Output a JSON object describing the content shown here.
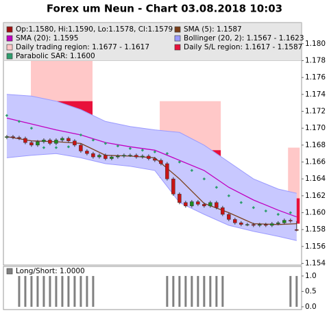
{
  "chart_data": [
    {
      "type": "candlestick",
      "title": "Forex um Neun - Chart 03.08.2018 10:03",
      "name": "Op:1.1580, Hi:1.1590, Lo:1.1578, Cl:1.1579",
      "color": "#a01010",
      "up_color": "#1e8c1e",
      "down_color": "#c81414",
      "x": [
        0,
        1,
        2,
        3,
        4,
        5,
        6,
        7,
        8,
        9,
        10,
        11,
        12,
        13,
        14,
        15,
        16,
        17,
        18,
        19,
        20,
        21,
        22,
        23,
        24,
        25,
        26,
        27,
        28,
        29,
        30,
        31,
        32,
        33,
        34,
        35,
        36,
        37,
        38,
        39,
        40,
        41,
        42,
        43,
        44,
        45,
        46,
        47
      ],
      "open": [
        1.1689,
        1.169,
        1.1689,
        1.1688,
        1.1683,
        1.168,
        1.1684,
        1.1686,
        1.1682,
        1.1686,
        1.1688,
        1.1685,
        1.168,
        1.1673,
        1.167,
        1.1666,
        1.1668,
        1.1664,
        1.1666,
        1.1667,
        1.1668,
        1.1668,
        1.1666,
        1.1667,
        1.1664,
        1.1662,
        1.1658,
        1.164,
        1.1622,
        1.1612,
        1.1608,
        1.1613,
        1.161,
        1.1608,
        1.1612,
        1.1606,
        1.1598,
        1.1592,
        1.1588,
        1.1586,
        1.1586,
        1.1585,
        1.1586,
        1.1585,
        1.1587,
        1.1588,
        1.1591,
        1.158
      ],
      "high": [
        1.1692,
        1.1692,
        1.1691,
        1.169,
        1.1685,
        1.1686,
        1.1688,
        1.1688,
        1.1688,
        1.169,
        1.169,
        1.1687,
        1.1682,
        1.1675,
        1.1672,
        1.167,
        1.167,
        1.1668,
        1.1669,
        1.167,
        1.167,
        1.167,
        1.1669,
        1.1669,
        1.1666,
        1.1664,
        1.166,
        1.1642,
        1.1624,
        1.1614,
        1.1615,
        1.1615,
        1.1612,
        1.1614,
        1.1614,
        1.1608,
        1.16,
        1.1594,
        1.159,
        1.1588,
        1.1588,
        1.1588,
        1.1588,
        1.1589,
        1.159,
        1.1593,
        1.1593,
        1.159
      ],
      "low": [
        1.1687,
        1.1687,
        1.1686,
        1.1681,
        1.1678,
        1.1678,
        1.1682,
        1.168,
        1.168,
        1.1684,
        1.1683,
        1.1678,
        1.1671,
        1.1668,
        1.1664,
        1.1664,
        1.1662,
        1.1662,
        1.1664,
        1.1665,
        1.1666,
        1.1664,
        1.1664,
        1.1662,
        1.166,
        1.1656,
        1.1638,
        1.162,
        1.161,
        1.1606,
        1.1606,
        1.1608,
        1.1606,
        1.1606,
        1.1604,
        1.1596,
        1.159,
        1.1586,
        1.1584,
        1.1584,
        1.1583,
        1.1583,
        1.1583,
        1.1583,
        1.1585,
        1.1586,
        1.1588,
        1.1578
      ],
      "close": [
        1.169,
        1.1689,
        1.1688,
        1.1683,
        1.168,
        1.1684,
        1.1686,
        1.1682,
        1.1686,
        1.1688,
        1.1685,
        1.168,
        1.1673,
        1.167,
        1.1666,
        1.1668,
        1.1664,
        1.1666,
        1.1667,
        1.1668,
        1.1668,
        1.1666,
        1.1667,
        1.1664,
        1.1662,
        1.1658,
        1.164,
        1.1622,
        1.1612,
        1.1608,
        1.1613,
        1.161,
        1.1608,
        1.1612,
        1.1606,
        1.1598,
        1.1592,
        1.1588,
        1.1586,
        1.1586,
        1.1585,
        1.1586,
        1.1585,
        1.1587,
        1.1588,
        1.1591,
        1.159,
        1.1579
      ],
      "bands": [
        {
          "name": "Bollinger (20, 2): 1.1567 - 1.1623",
          "color": "#9a9aff",
          "fill": "#c8c8ff",
          "x": [
            0,
            4,
            8,
            12,
            16,
            20,
            24,
            28,
            32,
            36,
            40,
            44,
            47
          ],
          "upper": [
            1.174,
            1.1738,
            1.1732,
            1.1722,
            1.1708,
            1.1702,
            1.1698,
            1.1695,
            1.168,
            1.166,
            1.164,
            1.1628,
            1.1623
          ],
          "lower": [
            1.1665,
            1.1668,
            1.167,
            1.1665,
            1.1658,
            1.1655,
            1.165,
            1.1612,
            1.1598,
            1.1585,
            1.1578,
            1.1572,
            1.1567
          ]
        }
      ],
      "series": [
        {
          "name": "SMA (5): 1.1587",
          "color": "#7b3f1a",
          "style": "line",
          "x": [
            0,
            4,
            8,
            12,
            16,
            20,
            24,
            28,
            32,
            36,
            40,
            44,
            47
          ],
          "values": [
            1.169,
            1.1685,
            1.1684,
            1.1682,
            1.1668,
            1.1667,
            1.1665,
            1.164,
            1.1611,
            1.16,
            1.1587,
            1.1586,
            1.1587
          ]
        },
        {
          "name": "SMA (20): 1.1595",
          "color": "#c000c0",
          "style": "line",
          "x": [
            0,
            4,
            8,
            12,
            16,
            20,
            24,
            28,
            32,
            36,
            40,
            44,
            47
          ],
          "values": [
            1.1712,
            1.1705,
            1.1698,
            1.1692,
            1.1683,
            1.1678,
            1.1674,
            1.1662,
            1.165,
            1.163,
            1.1615,
            1.1603,
            1.1595
          ]
        },
        {
          "name": "Parabolic SAR: 1.1600",
          "color": "#2e9e6e",
          "style": "dots",
          "x": [
            0,
            2,
            4,
            6,
            8,
            10,
            12,
            14,
            16,
            18,
            20,
            22,
            24,
            26,
            28,
            30,
            32,
            34,
            36,
            38,
            40,
            42,
            44,
            46
          ],
          "values": [
            1.1715,
            1.1708,
            1.17,
            1.1677,
            1.1677,
            1.1678,
            1.1692,
            1.1686,
            1.1682,
            1.1679,
            1.1676,
            1.1674,
            1.1672,
            1.167,
            1.166,
            1.165,
            1.164,
            1.163,
            1.162,
            1.1612,
            1.1606,
            1.1602,
            1.1598,
            1.16
          ]
        }
      ],
      "regions": [
        {
          "name": "Daily trading region: 1.1677 - 1.1617",
          "color": "#ffc8c8",
          "spans": [
            {
              "x": [
                3.9,
                13.9
              ],
              "y": [
                1.1792,
                1.1732
              ]
            },
            {
              "x": [
                24.8,
                34.7
              ],
              "y": [
                1.1732,
                1.1674
              ]
            },
            {
              "x": [
                45.6,
                47.5
              ],
              "y": [
                1.1677,
                1.1617
              ]
            }
          ]
        },
        {
          "name": "Daily S/L region: 1.1617 - 1.1587",
          "color": "#e8103a",
          "spans": [
            {
              "x": [
                3.9,
                13.9
              ],
              "y": [
                1.1732,
                1.17
              ]
            },
            {
              "x": [
                24.8,
                34.7
              ],
              "y": [
                1.1674,
                1.1641
              ]
            },
            {
              "x": [
                45.6,
                47.5
              ],
              "y": [
                1.1617,
                1.1587
              ]
            }
          ]
        }
      ],
      "xlim": [
        -0.55,
        47.8
      ],
      "ylim": [
        1.1538,
        1.1825
      ],
      "yticks": [
        1.154,
        1.156,
        1.158,
        {
          "value": 1.16,
          "label": "1.160"
        },
        1.162,
        1.164,
        1.166,
        1.168,
        {
          "value": 1.17,
          "label": "1.170"
        },
        1.172,
        1.174,
        1.176,
        1.178,
        {
          "value": 1.18,
          "label": "1.180"
        }
      ]
    },
    {
      "type": "bar",
      "name": "Long/Short: 1.0000",
      "color": "#808080",
      "values": [
        0,
        0,
        1,
        1,
        1,
        1,
        1,
        1,
        1,
        1,
        1,
        1,
        1,
        1,
        1,
        0,
        0,
        0,
        0,
        0,
        0,
        0,
        0,
        0,
        0,
        0,
        1,
        1,
        1,
        1,
        1,
        1,
        1,
        1,
        1,
        1,
        0,
        0,
        0,
        0,
        0,
        0,
        0,
        0,
        0,
        0,
        1,
        1
      ],
      "ylim": [
        -0.09,
        1.31
      ],
      "yticks": [
        {
          "value": 0,
          "label": "0.0"
        },
        {
          "value": 0.5,
          "label": "0.5"
        },
        {
          "value": 1,
          "label": "1.0"
        }
      ]
    }
  ]
}
